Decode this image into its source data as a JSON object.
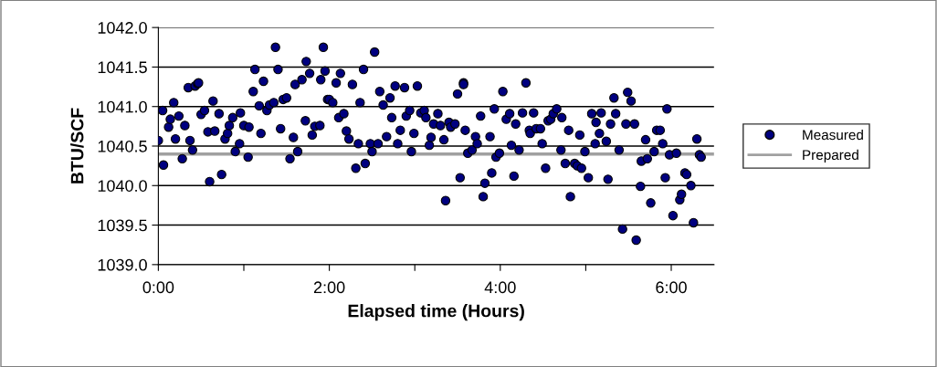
{
  "chart_data": {
    "type": "scatter",
    "xlabel": "Elapsed time (Hours)",
    "ylabel": "BTU/SCF",
    "xlim": [
      0,
      6.5
    ],
    "xticks": [
      {
        "value": 0,
        "label": "0:00"
      },
      {
        "value": 1,
        "label": null
      },
      {
        "value": 2,
        "label": "2:00"
      },
      {
        "value": 3,
        "label": null
      },
      {
        "value": 4,
        "label": "4:00"
      },
      {
        "value": 5,
        "label": null
      },
      {
        "value": 6,
        "label": "6:00"
      }
    ],
    "ylim": [
      1039.0,
      1042.0
    ],
    "yticks": [
      {
        "value": 1039.0,
        "label": "1039.0"
      },
      {
        "value": 1039.5,
        "label": "1039.5"
      },
      {
        "value": 1040.0,
        "label": "1040.0"
      },
      {
        "value": 1040.5,
        "label": "1040.5"
      },
      {
        "value": 1041.0,
        "label": "1041.0"
      },
      {
        "value": 1041.5,
        "label": "1041.5"
      },
      {
        "value": 1042.0,
        "label": "1042.0"
      }
    ],
    "grid": "y",
    "legend": "right",
    "series": [
      {
        "name": "Measured",
        "marker": "circle",
        "color": "#000080",
        "x": [
          0.0,
          0.05,
          0.06,
          0.12,
          0.14,
          0.18,
          0.2,
          0.24,
          0.28,
          0.31,
          0.35,
          0.37,
          0.4,
          0.43,
          0.46,
          0.47,
          0.5,
          0.54,
          0.58,
          0.6,
          0.64,
          0.66,
          0.71,
          0.74,
          0.78,
          0.81,
          0.83,
          0.87,
          0.9,
          0.95,
          0.96,
          1.0,
          1.05,
          1.06,
          1.11,
          1.13,
          1.18,
          1.2,
          1.23,
          1.27,
          1.3,
          1.35,
          1.37,
          1.4,
          1.43,
          1.46,
          1.5,
          1.54,
          1.58,
          1.6,
          1.63,
          1.68,
          1.72,
          1.73,
          1.77,
          1.8,
          1.83,
          1.89,
          1.9,
          1.93,
          1.95,
          1.98,
          2.0,
          2.04,
          2.08,
          2.11,
          2.13,
          2.17,
          2.2,
          2.23,
          2.27,
          2.31,
          2.34,
          2.36,
          2.4,
          2.42,
          2.48,
          2.5,
          2.53,
          2.57,
          2.59,
          2.63,
          2.67,
          2.71,
          2.73,
          2.77,
          2.8,
          2.83,
          2.88,
          2.9,
          2.94,
          2.96,
          2.99,
          3.03,
          3.07,
          3.11,
          3.13,
          3.17,
          3.19,
          3.22,
          3.27,
          3.3,
          3.34,
          3.36,
          3.4,
          3.42,
          3.47,
          3.5,
          3.53,
          3.57,
          3.57,
          3.59,
          3.62,
          3.67,
          3.71,
          3.73,
          3.77,
          3.8,
          3.82,
          3.88,
          3.9,
          3.93,
          3.95,
          3.99,
          4.03,
          4.07,
          4.11,
          4.13,
          4.16,
          4.18,
          4.22,
          4.26,
          4.3,
          4.34,
          4.35,
          4.39,
          4.42,
          4.47,
          4.49,
          4.53,
          4.56,
          4.59,
          4.62,
          4.66,
          4.71,
          4.72,
          4.76,
          4.8,
          4.82,
          4.87,
          4.9,
          4.93,
          4.95,
          4.99,
          5.03,
          5.07,
          5.11,
          5.12,
          5.16,
          5.18,
          5.24,
          5.26,
          5.29,
          5.33,
          5.35,
          5.39,
          5.43,
          5.47,
          5.49,
          5.53,
          5.57,
          5.59,
          5.64,
          5.65,
          5.7,
          5.72,
          5.76,
          5.8,
          5.83,
          5.87,
          5.9,
          5.93,
          5.95,
          5.98,
          6.02,
          6.06,
          6.1,
          6.12,
          6.16,
          6.18,
          6.23,
          6.26,
          6.3,
          6.33,
          6.35
        ],
        "values": [
          1040.57,
          1040.95,
          1040.26,
          1040.74,
          1040.84,
          1041.05,
          1040.59,
          1040.88,
          1040.34,
          1040.76,
          1041.24,
          1040.57,
          1040.45,
          1041.26,
          1041.29,
          1041.3,
          1040.9,
          1040.95,
          1040.68,
          1040.05,
          1041.07,
          1040.69,
          1040.91,
          1040.14,
          1040.59,
          1040.66,
          1040.76,
          1040.86,
          1040.43,
          1040.53,
          1040.92,
          1040.76,
          1040.36,
          1040.74,
          1041.19,
          1041.47,
          1041.01,
          1040.66,
          1041.32,
          1040.95,
          1041.02,
          1041.05,
          1041.75,
          1041.47,
          1040.72,
          1041.09,
          1041.11,
          1040.34,
          1040.61,
          1041.28,
          1040.43,
          1041.34,
          1040.82,
          1041.57,
          1041.42,
          1040.64,
          1040.75,
          1040.76,
          1041.34,
          1041.75,
          1041.45,
          1041.09,
          1041.09,
          1041.05,
          1041.3,
          1040.86,
          1041.42,
          1040.91,
          1040.69,
          1040.59,
          1041.28,
          1040.22,
          1040.53,
          1041.05,
          1041.47,
          1040.28,
          1040.53,
          1040.43,
          1041.69,
          1040.53,
          1041.19,
          1041.02,
          1040.62,
          1041.11,
          1040.86,
          1041.26,
          1040.53,
          1040.7,
          1041.24,
          1040.88,
          1040.95,
          1040.43,
          1040.66,
          1041.26,
          1040.92,
          1040.95,
          1040.86,
          1040.51,
          1040.61,
          1040.78,
          1040.91,
          1040.76,
          1040.58,
          1039.81,
          1040.8,
          1040.74,
          1040.78,
          1041.16,
          1040.1,
          1041.3,
          1041.28,
          1040.7,
          1040.41,
          1040.45,
          1040.62,
          1040.53,
          1040.88,
          1039.86,
          1040.03,
          1040.62,
          1040.16,
          1040.97,
          1040.36,
          1040.41,
          1041.19,
          1040.84,
          1040.91,
          1040.51,
          1040.12,
          1040.78,
          1040.45,
          1040.92,
          1041.3,
          1040.7,
          1040.66,
          1040.92,
          1040.72,
          1040.72,
          1040.53,
          1040.22,
          1040.82,
          1040.84,
          1040.91,
          1040.97,
          1040.45,
          1040.86,
          1040.28,
          1040.7,
          1039.86,
          1040.28,
          1040.25,
          1040.64,
          1040.22,
          1040.43,
          1040.1,
          1040.91,
          1040.53,
          1040.8,
          1040.66,
          1040.92,
          1040.56,
          1040.08,
          1040.78,
          1041.11,
          1040.91,
          1040.45,
          1039.45,
          1040.78,
          1041.18,
          1041.07,
          1040.78,
          1039.31,
          1039.99,
          1040.31,
          1040.58,
          1040.34,
          1039.78,
          1040.43,
          1040.7,
          1040.7,
          1040.53,
          1040.1,
          1040.97,
          1040.39,
          1039.62,
          1040.41,
          1039.82,
          1039.89,
          1040.16,
          1040.14,
          1040.0,
          1039.53,
          1040.59,
          1040.39,
          1040.36
        ]
      },
      {
        "name": "Prepared",
        "type": "line",
        "color": "#a0a0a0",
        "x": [
          0,
          6.5
        ],
        "values": [
          1040.4,
          1040.4
        ]
      }
    ]
  }
}
